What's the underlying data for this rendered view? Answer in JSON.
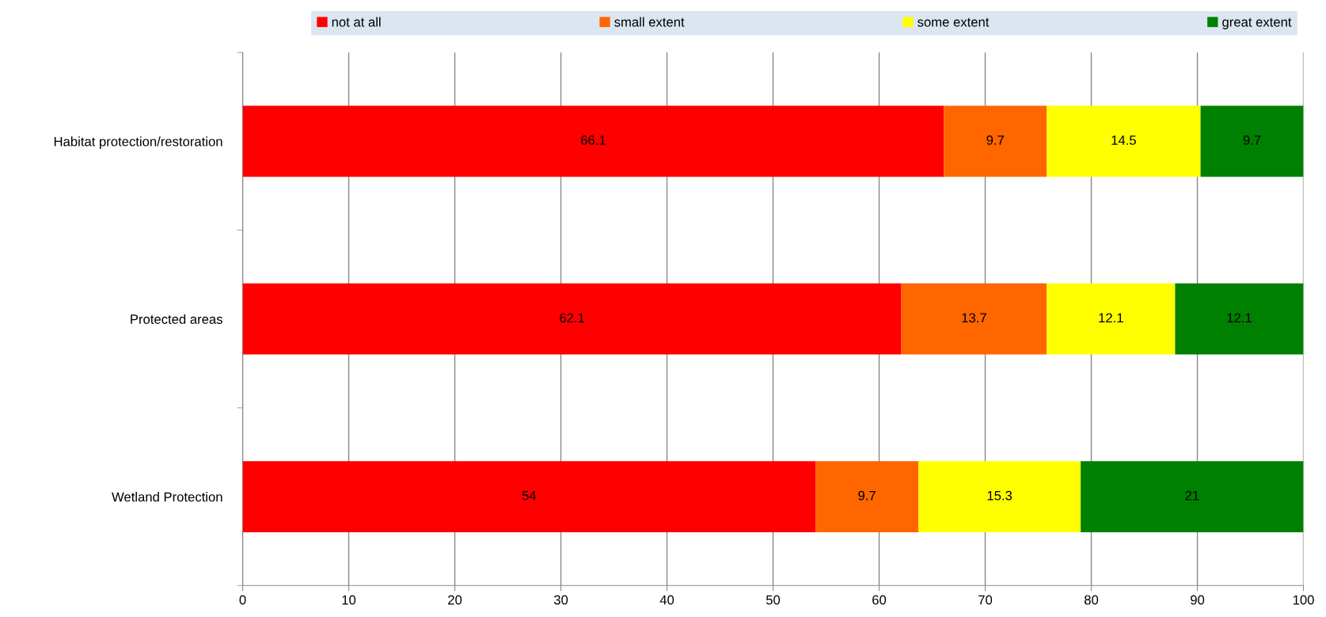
{
  "chart_data": {
    "type": "bar",
    "orientation": "horizontal",
    "stacked": true,
    "categories": [
      "Habitat protection/restoration",
      "Protected areas",
      "Wetland Protection"
    ],
    "series": [
      {
        "name": "not at all",
        "color": "#ff0000",
        "values": [
          66.1,
          62.1,
          54
        ]
      },
      {
        "name": "small extent",
        "color": "#ff6600",
        "values": [
          9.7,
          13.7,
          9.7
        ]
      },
      {
        "name": "some extent",
        "color": "#ffff00",
        "values": [
          14.5,
          12.1,
          15.3
        ]
      },
      {
        "name": "great extent",
        "color": "#008000",
        "values": [
          9.7,
          12.1,
          21
        ]
      }
    ],
    "xlim": [
      0,
      100
    ],
    "xticks": [
      0,
      10,
      20,
      30,
      40,
      50,
      60,
      70,
      80,
      90,
      100
    ],
    "grid": "x",
    "legend": "top",
    "data_labels": true
  }
}
